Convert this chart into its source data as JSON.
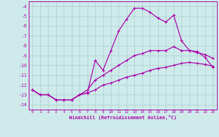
{
  "xlabel": "Windchill (Refroidissement éolien,°C)",
  "x": [
    0,
    1,
    2,
    3,
    4,
    5,
    6,
    7,
    8,
    9,
    10,
    11,
    12,
    13,
    14,
    15,
    16,
    17,
    18,
    19,
    20,
    21,
    22,
    23
  ],
  "line1": [
    -12.5,
    -13,
    -13,
    -13.5,
    -13.5,
    -13.5,
    -13,
    -12.8,
    -9.5,
    -10.5,
    -8.5,
    -6.5,
    -5.3,
    -4.2,
    -4.2,
    -4.6,
    -5.2,
    -5.6,
    -4.9,
    -7.5,
    -8.5,
    -8.6,
    -9.2,
    -10.2
  ],
  "line2": [
    -12.5,
    -13,
    -13,
    -13.5,
    -13.5,
    -13.5,
    -13,
    -12.5,
    -11.5,
    -11.0,
    -10.5,
    -10.0,
    -9.5,
    -9.0,
    -8.8,
    -8.5,
    -8.5,
    -8.5,
    -8.1,
    -8.5,
    -8.5,
    -8.7,
    -8.9,
    -9.3
  ],
  "line3": [
    -12.5,
    -13,
    -13,
    -13.5,
    -13.5,
    -13.5,
    -13,
    -12.8,
    -12.5,
    -12.0,
    -11.8,
    -11.5,
    -11.2,
    -11.0,
    -10.8,
    -10.5,
    -10.3,
    -10.2,
    -10.0,
    -9.8,
    -9.7,
    -9.8,
    -9.9,
    -10.1
  ],
  "line_color": "#aa00aa",
  "bg_color": "#ceeaea",
  "grid_color": "#aacccc",
  "ylim": [
    -14.5,
    -3.5
  ],
  "yticks": [
    -4,
    -5,
    -6,
    -7,
    -8,
    -9,
    -10,
    -11,
    -12,
    -13,
    -14
  ],
  "marker": "+"
}
